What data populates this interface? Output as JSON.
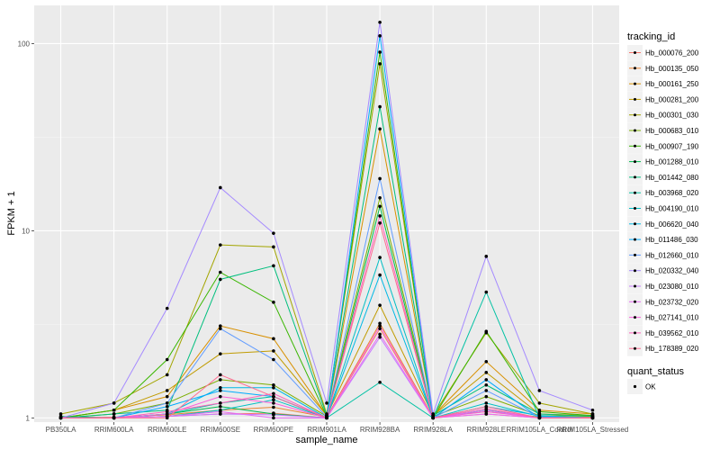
{
  "chart_data": {
    "type": "line",
    "xlabel": "sample_name",
    "ylabel": "FPKM + 1",
    "y_scale": "log10",
    "ylim": [
      0.95,
      160
    ],
    "y_ticks": [
      1,
      10,
      100
    ],
    "y_tick_labels": [
      "1",
      "10",
      "100"
    ],
    "categories": [
      "PB350LA",
      "RRIM600LA",
      "RRIM600LE",
      "RRIM600SE",
      "RRIM600PE",
      "RRIM901LA",
      "RRIM928BA",
      "RRIM928LA",
      "RRIM928LE",
      "RRIM105LA_Control",
      "RRIM105LA_Stressed"
    ],
    "legend": {
      "title": "tracking_id",
      "position": "right"
    },
    "shape_legend": {
      "title": "quant_status",
      "items": [
        "OK"
      ]
    },
    "series": [
      {
        "name": "Hb_000076_200",
        "color": "#F8766D",
        "values": [
          1.0,
          1.0,
          1.02,
          1.05,
          1.06,
          1.0,
          3.0,
          1.0,
          1.05,
          1.0,
          1.0
        ]
      },
      {
        "name": "Hb_000135_050",
        "color": "#EA8331",
        "values": [
          1.0,
          1.01,
          1.04,
          1.1,
          1.14,
          1.01,
          3.2,
          1.01,
          1.08,
          1.01,
          1.01
        ]
      },
      {
        "name": "Hb_000161_250",
        "color": "#D89000",
        "values": [
          1.0,
          1.1,
          1.3,
          3.1,
          2.65,
          1.03,
          35.0,
          1.03,
          2.0,
          1.1,
          1.05
        ]
      },
      {
        "name": "Hb_000281_200",
        "color": "#C09B00",
        "values": [
          1.0,
          1.1,
          1.4,
          2.2,
          2.28,
          1.03,
          4.0,
          1.03,
          1.75,
          1.05,
          1.03
        ]
      },
      {
        "name": "Hb_000301_030",
        "color": "#A3A500",
        "values": [
          1.05,
          1.2,
          1.7,
          8.4,
          8.2,
          1.05,
          78.0,
          1.03,
          2.85,
          1.2,
          1.05
        ]
      },
      {
        "name": "Hb_000683_010",
        "color": "#7CAE00",
        "values": [
          1.0,
          1.05,
          1.2,
          1.6,
          1.5,
          1.02,
          15.0,
          1.02,
          1.3,
          1.03,
          1.02
        ]
      },
      {
        "name": "Hb_000907_190",
        "color": "#39B600",
        "values": [
          1.0,
          1.1,
          2.05,
          6.0,
          4.15,
          1.02,
          90.0,
          1.0,
          2.9,
          1.08,
          1.03
        ]
      },
      {
        "name": "Hb_001288_010",
        "color": "#00BB4E",
        "values": [
          1.02,
          1.0,
          1.05,
          1.15,
          1.05,
          1.0,
          13.5,
          1.0,
          1.1,
          1.01,
          1.0
        ]
      },
      {
        "name": "Hb_001442_080",
        "color": "#00BF7D",
        "values": [
          1.0,
          1.05,
          1.1,
          5.5,
          6.5,
          1.03,
          46.0,
          1.03,
          1.5,
          1.05,
          1.02
        ]
      },
      {
        "name": "Hb_003968_020",
        "color": "#00C1A3",
        "values": [
          1.0,
          1.0,
          1.05,
          1.2,
          1.3,
          1.0,
          1.55,
          1.0,
          4.7,
          1.0,
          1.0
        ]
      },
      {
        "name": "Hb_004190_010",
        "color": "#00BFC4",
        "values": [
          1.0,
          1.0,
          1.02,
          1.1,
          1.25,
          1.0,
          7.2,
          1.0,
          1.2,
          1.02,
          1.0
        ]
      },
      {
        "name": "Hb_006620_040",
        "color": "#00B8E5",
        "values": [
          1.0,
          1.0,
          1.05,
          1.45,
          1.45,
          1.0,
          5.8,
          1.0,
          1.15,
          1.03,
          1.0
        ]
      },
      {
        "name": "Hb_011486_030",
        "color": "#00ABFD",
        "values": [
          1.0,
          1.0,
          1.15,
          1.4,
          1.3,
          1.0,
          110.0,
          1.0,
          1.6,
          1.0,
          1.0
        ]
      },
      {
        "name": "Hb_012660_010",
        "color": "#619CFF",
        "values": [
          1.0,
          1.0,
          1.2,
          3.0,
          2.05,
          1.01,
          19.0,
          1.0,
          1.4,
          1.01,
          1.0
        ]
      },
      {
        "name": "Hb_020332_040",
        "color": "#A58AFF",
        "values": [
          1.0,
          1.2,
          3.85,
          17.0,
          9.7,
          1.2,
          130.0,
          1.05,
          7.3,
          1.4,
          1.1
        ]
      },
      {
        "name": "Hb_023080_010",
        "color": "#C77CFF",
        "values": [
          1.0,
          1.0,
          1.02,
          1.05,
          1.04,
          1.0,
          2.7,
          1.0,
          1.1,
          1.0,
          1.0
        ]
      },
      {
        "name": "Hb_023732_020",
        "color": "#E76BF3",
        "values": [
          1.0,
          1.0,
          1.02,
          1.08,
          1.0,
          1.0,
          2.8,
          1.0,
          1.05,
          1.0,
          1.0
        ]
      },
      {
        "name": "Hb_027141_010",
        "color": "#FA62DB",
        "values": [
          1.0,
          1.0,
          1.05,
          1.3,
          1.2,
          1.0,
          3.1,
          1.0,
          1.08,
          1.0,
          1.0
        ]
      },
      {
        "name": "Hb_039562_010",
        "color": "#FF62BC",
        "values": [
          1.0,
          1.0,
          1.08,
          1.2,
          1.35,
          1.0,
          12.0,
          1.0,
          1.12,
          1.0,
          1.0
        ]
      },
      {
        "name": "Hb_178389_020",
        "color": "#FF6C91",
        "values": [
          1.0,
          1.0,
          1.0,
          1.7,
          1.3,
          1.0,
          11.0,
          1.0,
          1.15,
          1.0,
          1.0
        ]
      }
    ]
  },
  "colors": {
    "panel_bg": "#EBEBEB",
    "grid_major": "#FFFFFF",
    "point": "#000000"
  }
}
